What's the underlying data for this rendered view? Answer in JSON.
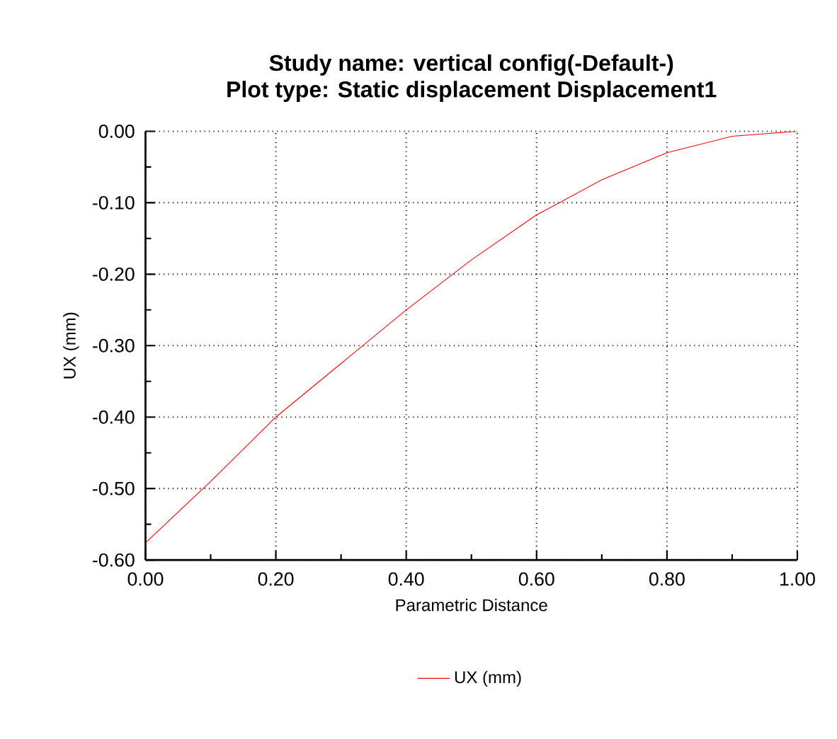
{
  "chart_data": {
    "type": "line",
    "title": "Study name: vertical config(-Default-)",
    "subtitle": "Plot type: Static displacement Displacement1",
    "xlabel": "Parametric Distance",
    "ylabel": "UX (mm)",
    "x": [
      0,
      0.1,
      0.2,
      0.3,
      0.4,
      0.5,
      0.6,
      0.7,
      0.8,
      0.9,
      1.0
    ],
    "series": [
      {
        "name": "UX (mm)",
        "color": "#ff0000",
        "values": [
          -0.576,
          -0.49,
          -0.4,
          -0.325,
          -0.25,
          -0.18,
          -0.117,
          -0.068,
          -0.03,
          -0.007,
          0
        ]
      }
    ],
    "xlim": [
      0,
      1
    ],
    "ylim": [
      -0.6,
      0
    ],
    "xticks": [
      {
        "value": 0,
        "label": "0.00"
      },
      {
        "value": 0.2,
        "label": "0.20"
      },
      {
        "value": 0.4,
        "label": "0.40"
      },
      {
        "value": 0.6,
        "label": "0.60"
      },
      {
        "value": 0.8,
        "label": "0.80"
      },
      {
        "value": 1,
        "label": "1.00"
      }
    ],
    "yticks": [
      {
        "value": -0.6,
        "label": "-0.60"
      },
      {
        "value": -0.5,
        "label": "-0.50"
      },
      {
        "value": -0.4,
        "label": "-0.40"
      },
      {
        "value": -0.3,
        "label": "-0.30"
      },
      {
        "value": -0.2,
        "label": "-0.20"
      },
      {
        "value": -0.1,
        "label": "-0.10"
      },
      {
        "value": 0,
        "label": "0.00"
      }
    ],
    "grid": true,
    "legend": "bottom",
    "marker": "none",
    "line_style": "solid"
  }
}
